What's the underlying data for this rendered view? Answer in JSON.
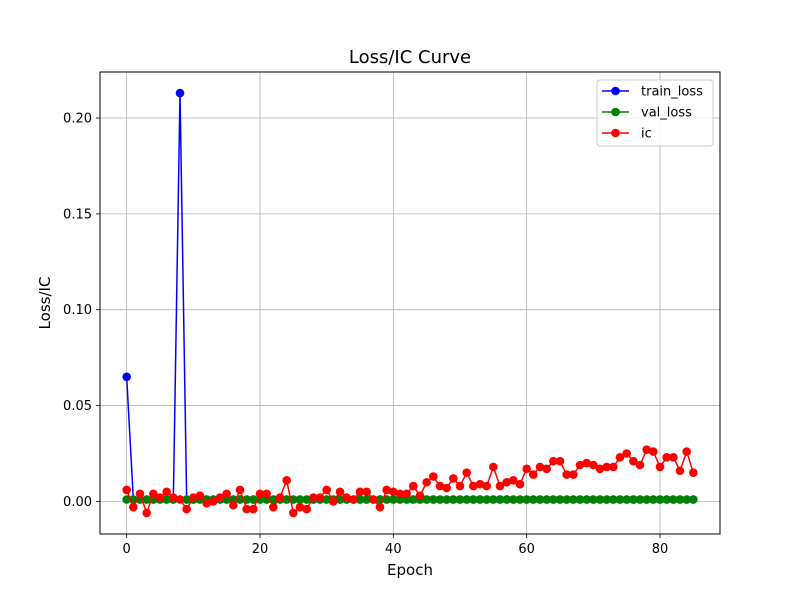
{
  "chart_data": {
    "type": "line",
    "title": "Loss/IC Curve",
    "xlabel": "Epoch",
    "ylabel": "Loss/IC",
    "xlim": [
      -4,
      89
    ],
    "ylim": [
      -0.017,
      0.224
    ],
    "grid": true,
    "legend_position": "top-right",
    "xticks": [
      0,
      20,
      40,
      60,
      80
    ],
    "xtick_labels": [
      "0",
      "20",
      "40",
      "60",
      "80"
    ],
    "yticks": [
      0.0,
      0.05,
      0.1,
      0.15,
      0.2
    ],
    "ytick_labels": [
      "0.00",
      "0.05",
      "0.10",
      "0.15",
      "0.20"
    ],
    "series": [
      {
        "name": "train_loss",
        "color": "#0000ff",
        "x": [
          0,
          1,
          2,
          3,
          4,
          5,
          6,
          7,
          8,
          9,
          10,
          11,
          12,
          13,
          14,
          15,
          16,
          17,
          18,
          19,
          20,
          21,
          22,
          23,
          24,
          25,
          26,
          27,
          28,
          29,
          30,
          31,
          32,
          33,
          34,
          35,
          36,
          37,
          38,
          39,
          40,
          41,
          42,
          43,
          44,
          45,
          46,
          47,
          48,
          49,
          50,
          51,
          52,
          53,
          54,
          55,
          56,
          57,
          58,
          59,
          60,
          61,
          62,
          63,
          64,
          65,
          66,
          67,
          68,
          69,
          70,
          71,
          72,
          73,
          74,
          75,
          76,
          77,
          78,
          79,
          80,
          81,
          82,
          83,
          84,
          85
        ],
        "values": [
          0.065,
          0.001,
          0.001,
          0.001,
          0.001,
          0.001,
          0.001,
          0.001,
          0.213,
          0.001,
          0.001,
          0.001,
          0.001,
          0.001,
          0.001,
          0.001,
          0.001,
          0.001,
          0.001,
          0.001,
          0.001,
          0.001,
          0.001,
          0.001,
          0.001,
          0.001,
          0.001,
          0.001,
          0.001,
          0.001,
          0.001,
          0.001,
          0.001,
          0.001,
          0.001,
          0.001,
          0.001,
          0.001,
          0.001,
          0.001,
          0.001,
          0.001,
          0.001,
          0.001,
          0.001,
          0.001,
          0.001,
          0.001,
          0.001,
          0.001,
          0.001,
          0.001,
          0.001,
          0.001,
          0.001,
          0.001,
          0.001,
          0.001,
          0.001,
          0.001,
          0.001,
          0.001,
          0.001,
          0.001,
          0.001,
          0.001,
          0.001,
          0.001,
          0.001,
          0.001,
          0.001,
          0.001,
          0.001,
          0.001,
          0.001,
          0.001,
          0.001,
          0.001,
          0.001,
          0.001,
          0.001,
          0.001,
          0.001,
          0.001,
          0.001,
          0.001
        ]
      },
      {
        "name": "val_loss",
        "color": "#008000",
        "x": [
          0,
          1,
          2,
          3,
          4,
          5,
          6,
          7,
          8,
          9,
          10,
          11,
          12,
          13,
          14,
          15,
          16,
          17,
          18,
          19,
          20,
          21,
          22,
          23,
          24,
          25,
          26,
          27,
          28,
          29,
          30,
          31,
          32,
          33,
          34,
          35,
          36,
          37,
          38,
          39,
          40,
          41,
          42,
          43,
          44,
          45,
          46,
          47,
          48,
          49,
          50,
          51,
          52,
          53,
          54,
          55,
          56,
          57,
          58,
          59,
          60,
          61,
          62,
          63,
          64,
          65,
          66,
          67,
          68,
          69,
          70,
          71,
          72,
          73,
          74,
          75,
          76,
          77,
          78,
          79,
          80,
          81,
          82,
          83,
          84,
          85
        ],
        "values": [
          0.001,
          0.001,
          0.001,
          0.001,
          0.001,
          0.001,
          0.001,
          0.001,
          0.001,
          0.001,
          0.001,
          0.001,
          0.001,
          0.001,
          0.001,
          0.001,
          0.001,
          0.001,
          0.001,
          0.001,
          0.001,
          0.001,
          0.001,
          0.001,
          0.001,
          0.001,
          0.001,
          0.001,
          0.001,
          0.001,
          0.001,
          0.001,
          0.001,
          0.001,
          0.001,
          0.001,
          0.001,
          0.001,
          0.001,
          0.001,
          0.001,
          0.001,
          0.001,
          0.001,
          0.001,
          0.001,
          0.001,
          0.001,
          0.001,
          0.001,
          0.001,
          0.001,
          0.001,
          0.001,
          0.001,
          0.001,
          0.001,
          0.001,
          0.001,
          0.001,
          0.001,
          0.001,
          0.001,
          0.001,
          0.001,
          0.001,
          0.001,
          0.001,
          0.001,
          0.001,
          0.001,
          0.001,
          0.001,
          0.001,
          0.001,
          0.001,
          0.001,
          0.001,
          0.001,
          0.001,
          0.001,
          0.001,
          0.001,
          0.001,
          0.001,
          0.001
        ]
      },
      {
        "name": "ic",
        "color": "#ff0000",
        "x": [
          0,
          1,
          2,
          3,
          4,
          5,
          6,
          7,
          8,
          9,
          10,
          11,
          12,
          13,
          14,
          15,
          16,
          17,
          18,
          19,
          20,
          21,
          22,
          23,
          24,
          25,
          26,
          27,
          28,
          29,
          30,
          31,
          32,
          33,
          34,
          35,
          36,
          37,
          38,
          39,
          40,
          41,
          42,
          43,
          44,
          45,
          46,
          47,
          48,
          49,
          50,
          51,
          52,
          53,
          54,
          55,
          56,
          57,
          58,
          59,
          60,
          61,
          62,
          63,
          64,
          65,
          66,
          67,
          68,
          69,
          70,
          71,
          72,
          73,
          74,
          75,
          76,
          77,
          78,
          79,
          80,
          81,
          82,
          83,
          84,
          85
        ],
        "values": [
          0.006,
          -0.003,
          0.004,
          -0.006,
          0.004,
          0.002,
          0.005,
          0.002,
          0.001,
          -0.004,
          0.002,
          0.003,
          -0.001,
          0.0,
          0.002,
          0.004,
          -0.002,
          0.006,
          -0.004,
          -0.004,
          0.004,
          0.004,
          -0.003,
          0.002,
          0.011,
          -0.006,
          -0.003,
          -0.004,
          0.002,
          0.002,
          0.006,
          0.0,
          0.005,
          0.002,
          0.001,
          0.005,
          0.005,
          0.001,
          -0.003,
          0.006,
          0.005,
          0.004,
          0.004,
          0.008,
          0.003,
          0.01,
          0.013,
          0.008,
          0.007,
          0.012,
          0.008,
          0.015,
          0.008,
          0.009,
          0.008,
          0.018,
          0.008,
          0.01,
          0.011,
          0.009,
          0.017,
          0.014,
          0.018,
          0.017,
          0.021,
          0.021,
          0.014,
          0.014,
          0.019,
          0.02,
          0.019,
          0.017,
          0.018,
          0.018,
          0.023,
          0.025,
          0.021,
          0.019,
          0.027,
          0.026,
          0.018,
          0.023,
          0.023,
          0.016,
          0.026,
          0.015
        ]
      }
    ]
  }
}
